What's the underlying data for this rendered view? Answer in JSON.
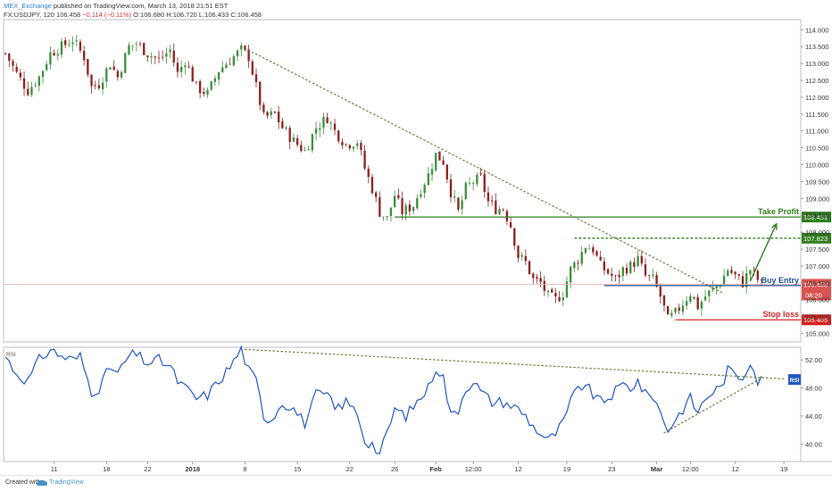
{
  "header": {
    "author": "MEX_Exchange",
    "published_text": " published on TradingView.com, March 13, 2018 21:51 EST",
    "symbol_line_prefix": "FX:USDJPY, 120 106.458 ",
    "change_text": "−0.114 (−0.11%)",
    "ohlc_text": " O:106.680 H:106.720 L:106.433 C:106.458"
  },
  "footer": {
    "created_with": "Created with",
    "brand": "TradingView"
  },
  "colors": {
    "up": "#3c8d3c",
    "down": "#8a1f1f",
    "take_profit": "#2f7d1f",
    "entry": "#1f4e8c",
    "stop_loss": "#d42020",
    "rsi": "#1f55c0",
    "trend_dots": "#6a7a3a"
  },
  "chart_data": {
    "type": "candlestick",
    "symbol": "FX:USDJPY",
    "interval": "120",
    "price_axis": {
      "range": [
        104.75,
        114.3
      ],
      "ticks": [
        105.0,
        105.5,
        106.0,
        106.5,
        107.0,
        107.5,
        108.0,
        108.5,
        109.0,
        109.5,
        110.0,
        110.5,
        111.0,
        111.5,
        112.0,
        112.5,
        113.0,
        113.5,
        114.0
      ],
      "tick_labels": [
        "105.000",
        "105.500",
        "106.000",
        "106.500",
        "107.000",
        "107.500",
        "108.000",
        "108.500",
        "109.000",
        "109.500",
        "110.000",
        "110.500",
        "111.000",
        "111.500",
        "112.000",
        "112.500",
        "113.000",
        "113.500",
        "114.000"
      ]
    },
    "time_axis": {
      "labels": [
        "11",
        "18",
        "22",
        "2018",
        "8",
        "15",
        "22",
        "26",
        "Feb",
        "12:00",
        "12",
        "19",
        "23",
        "Mar",
        "12:00",
        "12",
        "19"
      ],
      "positions_index": [
        13,
        27,
        38,
        50,
        64,
        78,
        92,
        104,
        115,
        125,
        137,
        150,
        162,
        174,
        183,
        195,
        208
      ],
      "count": 213
    },
    "price_path": [
      [
        0,
        113.3
      ],
      [
        3,
        112.7
      ],
      [
        6,
        112.2
      ],
      [
        9,
        112.6
      ],
      [
        12,
        113.3
      ],
      [
        15,
        113.5
      ],
      [
        18,
        113.7
      ],
      [
        21,
        113.2
      ],
      [
        23,
        112.3
      ],
      [
        25,
        112.4
      ],
      [
        28,
        113.0
      ],
      [
        30,
        112.6
      ],
      [
        33,
        113.5
      ],
      [
        35,
        113.6
      ],
      [
        38,
        113.3
      ],
      [
        41,
        113.1
      ],
      [
        44,
        113.4
      ],
      [
        46,
        112.7
      ],
      [
        48,
        113.1
      ],
      [
        51,
        112.3
      ],
      [
        54,
        112.1
      ],
      [
        57,
        112.8
      ],
      [
        60,
        113.1
      ],
      [
        63,
        113.4
      ],
      [
        65,
        113.2
      ],
      [
        67,
        112.3
      ],
      [
        69,
        111.4
      ],
      [
        72,
        111.5
      ],
      [
        74,
        111.1
      ],
      [
        77,
        110.7
      ],
      [
        80,
        110.4
      ],
      [
        83,
        111.1
      ],
      [
        86,
        111.4
      ],
      [
        88,
        111.0
      ],
      [
        91,
        110.6
      ],
      [
        94,
        110.7
      ],
      [
        96,
        109.9
      ],
      [
        98,
        109.3
      ],
      [
        100,
        108.6
      ],
      [
        102,
        108.4
      ],
      [
        104,
        109.1
      ],
      [
        106,
        108.6
      ],
      [
        109,
        108.8
      ],
      [
        111,
        109.3
      ],
      [
        113,
        109.7
      ],
      [
        115,
        110.3
      ],
      [
        117,
        110.1
      ],
      [
        119,
        109.2
      ],
      [
        121,
        108.6
      ],
      [
        123,
        109.3
      ],
      [
        125,
        109.5
      ],
      [
        127,
        109.6
      ],
      [
        129,
        108.9
      ],
      [
        131,
        108.7
      ],
      [
        133,
        108.7
      ],
      [
        135,
        108.2
      ],
      [
        137,
        107.3
      ],
      [
        139,
        107.1
      ],
      [
        141,
        106.6
      ],
      [
        143,
        106.5
      ],
      [
        145,
        106.1
      ],
      [
        147,
        106.0
      ],
      [
        149,
        106.2
      ],
      [
        151,
        106.9
      ],
      [
        153,
        107.2
      ],
      [
        155,
        107.6
      ],
      [
        157,
        107.5
      ],
      [
        159,
        107.0
      ],
      [
        161,
        106.8
      ],
      [
        163,
        106.6
      ],
      [
        165,
        106.9
      ],
      [
        167,
        107.0
      ],
      [
        169,
        107.2
      ],
      [
        171,
        106.7
      ],
      [
        173,
        106.6
      ],
      [
        175,
        106.1
      ],
      [
        177,
        105.4
      ],
      [
        179,
        105.6
      ],
      [
        181,
        105.9
      ],
      [
        183,
        106.2
      ],
      [
        185,
        105.8
      ],
      [
        187,
        106.1
      ],
      [
        189,
        106.3
      ],
      [
        191,
        106.5
      ],
      [
        193,
        106.9
      ],
      [
        195,
        106.7
      ],
      [
        197,
        106.5
      ],
      [
        199,
        106.9
      ],
      [
        201,
        106.6
      ],
      [
        202,
        106.458
      ]
    ],
    "price_trendline": [
      [
        64,
        113.45
      ],
      [
        192,
        106.18
      ]
    ],
    "levels": [
      {
        "label": "Take Profit",
        "value": 108.451,
        "value_label": "108.451",
        "start_index": 104,
        "end_index": 212,
        "style": "solid"
      },
      {
        "label": "",
        "value": 107.823,
        "value_label": "107.823",
        "start_index": 152,
        "end_index": 212,
        "style": "dashed"
      },
      {
        "label": "Buy Entry",
        "value": 106.42,
        "value_label": "",
        "start_index": 160,
        "end_index": 212,
        "style": "solid"
      },
      {
        "label": "Stop loss",
        "value": 105.405,
        "value_label": "105.405",
        "start_index": 179,
        "end_index": 212,
        "style": "solid"
      }
    ],
    "current_price": {
      "value": 106.458,
      "label": "106.458",
      "countdown": "08:20"
    },
    "target_arrow": {
      "from": [
        199,
        106.55
      ],
      "to": [
        206,
        108.25
      ]
    },
    "rsi": {
      "label": "RSI",
      "range": [
        37.5,
        53.8
      ],
      "ticks": [
        40.0,
        44.0,
        48.0,
        52.0
      ],
      "tick_labels": [
        "40.00",
        "44.00",
        "48.00",
        "52.00"
      ],
      "path": [
        [
          0,
          52.5
        ],
        [
          3,
          50.0
        ],
        [
          6,
          49.0
        ],
        [
          9,
          52.0
        ],
        [
          12,
          53.5
        ],
        [
          15,
          52.5
        ],
        [
          18,
          52.0
        ],
        [
          20,
          52.5
        ],
        [
          23,
          47.5
        ],
        [
          25,
          48.0
        ],
        [
          28,
          51.0
        ],
        [
          30,
          50.0
        ],
        [
          33,
          52.5
        ],
        [
          35,
          52.8
        ],
        [
          38,
          51.5
        ],
        [
          41,
          52.0
        ],
        [
          44,
          51.0
        ],
        [
          46,
          49.0
        ],
        [
          48,
          48.0
        ],
        [
          51,
          46.5
        ],
        [
          54,
          47.0
        ],
        [
          57,
          49.0
        ],
        [
          60,
          51.0
        ],
        [
          63,
          53.5
        ],
        [
          65,
          50.5
        ],
        [
          67,
          49.0
        ],
        [
          69,
          44.0
        ],
        [
          71,
          43.5
        ],
        [
          74,
          46.0
        ],
        [
          77,
          45.0
        ],
        [
          80,
          43.0
        ],
        [
          83,
          47.0
        ],
        [
          86,
          47.0
        ],
        [
          88,
          45.0
        ],
        [
          91,
          46.0
        ],
        [
          94,
          44.5
        ],
        [
          96,
          40.5
        ],
        [
          98,
          40.0
        ],
        [
          100,
          38.5
        ],
        [
          102,
          41.5
        ],
        [
          104,
          45.0
        ],
        [
          107,
          44.0
        ],
        [
          110,
          46.0
        ],
        [
          113,
          48.0
        ],
        [
          115,
          51.0
        ],
        [
          117,
          49.5
        ],
        [
          119,
          44.0
        ],
        [
          121,
          45.0
        ],
        [
          123,
          48.0
        ],
        [
          125,
          49.0
        ],
        [
          127,
          47.5
        ],
        [
          130,
          46.0
        ],
        [
          133,
          46.0
        ],
        [
          135,
          45.5
        ],
        [
          137,
          45.0
        ],
        [
          139,
          44.0
        ],
        [
          141,
          42.5
        ],
        [
          143,
          41.5
        ],
        [
          145,
          40.5
        ],
        [
          147,
          41.5
        ],
        [
          149,
          43.0
        ],
        [
          151,
          46.0
        ],
        [
          153,
          48.0
        ],
        [
          155,
          48.5
        ],
        [
          157,
          47.0
        ],
        [
          159,
          46.0
        ],
        [
          161,
          46.5
        ],
        [
          163,
          47.5
        ],
        [
          165,
          48.5
        ],
        [
          167,
          48.0
        ],
        [
          169,
          49.0
        ],
        [
          171,
          47.0
        ],
        [
          173,
          47.0
        ],
        [
          175,
          44.5
        ],
        [
          177,
          42.0
        ],
        [
          179,
          43.5
        ],
        [
          181,
          45.0
        ],
        [
          183,
          46.5
        ],
        [
          185,
          44.5
        ],
        [
          187,
          46.5
        ],
        [
          189,
          47.5
        ],
        [
          191,
          48.0
        ],
        [
          193,
          50.5
        ],
        [
          195,
          50.0
        ],
        [
          197,
          49.5
        ],
        [
          199,
          52.0
        ],
        [
          201,
          49.0
        ],
        [
          202,
          49.2
        ]
      ],
      "trendline_top": [
        [
          64,
          53.5
        ],
        [
          208,
          49.3
        ]
      ],
      "trendline_bottom": [
        [
          176,
          41.6
        ],
        [
          202,
          49.4
        ]
      ]
    }
  }
}
